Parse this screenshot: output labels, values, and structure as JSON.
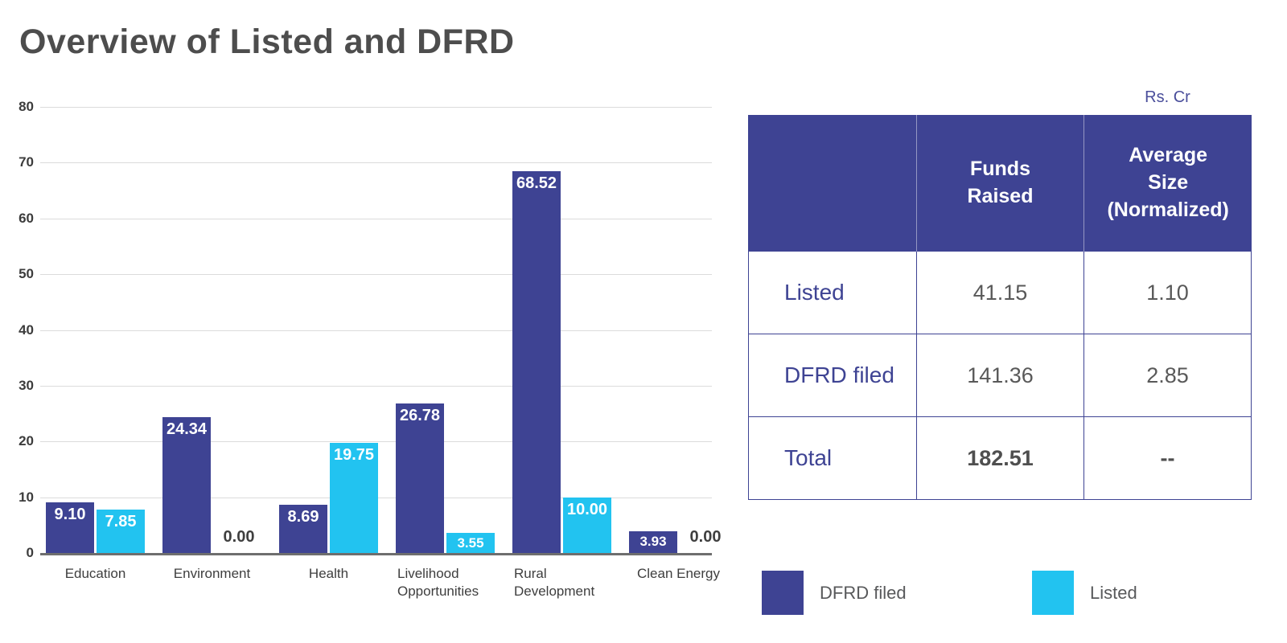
{
  "title": "Overview of Listed and DFRD",
  "unit_note": "Rs. Cr",
  "colors": {
    "dfrd_blue": "#3E4393",
    "listed_cyan": "#22C3F0",
    "gridline": "#DBDBDB",
    "axis_line": "#6E6E6E",
    "title_gray": "#4D4D4D",
    "value_gray": "#595959",
    "note_blue": "#4A4E9B"
  },
  "chart_data": {
    "type": "bar",
    "title": "Overview of Listed and DFRD",
    "categories": [
      "Education",
      "Environment",
      "Health",
      "Livelihood Opportunities",
      "Rural Development",
      "Clean Energy"
    ],
    "category_wrap": [
      false,
      false,
      false,
      true,
      true,
      false
    ],
    "series": [
      {
        "name": "DFRD filed",
        "color": "#3E4393",
        "values": [
          9.1,
          24.34,
          8.69,
          26.78,
          68.52,
          3.93
        ]
      },
      {
        "name": "Listed",
        "color": "#22C3F0",
        "values": [
          7.85,
          0.0,
          19.75,
          3.55,
          10.0,
          0.0
        ]
      }
    ],
    "xlabel": "",
    "ylabel": "",
    "ylim": [
      0,
      80
    ],
    "yticks": [
      0,
      10,
      20,
      30,
      40,
      50,
      60,
      70,
      80
    ],
    "grid": true,
    "value_labels": true,
    "legend_position": "bottom-right"
  },
  "table": {
    "unit": "Rs. Cr",
    "headers": [
      "",
      "Funds\nRaised",
      "Average\nSize\n(Normalized)"
    ],
    "rows": [
      {
        "label": "Listed",
        "funds": "41.15",
        "avg": "1.10"
      },
      {
        "label": "DFRD filed",
        "funds": "141.36",
        "avg": "2.85"
      },
      {
        "label": "Total",
        "funds": "182.51",
        "avg": "--"
      }
    ]
  },
  "legend": [
    {
      "label": "DFRD filed",
      "color": "#3E4393"
    },
    {
      "label": "Listed",
      "color": "#22C3F0"
    }
  ]
}
